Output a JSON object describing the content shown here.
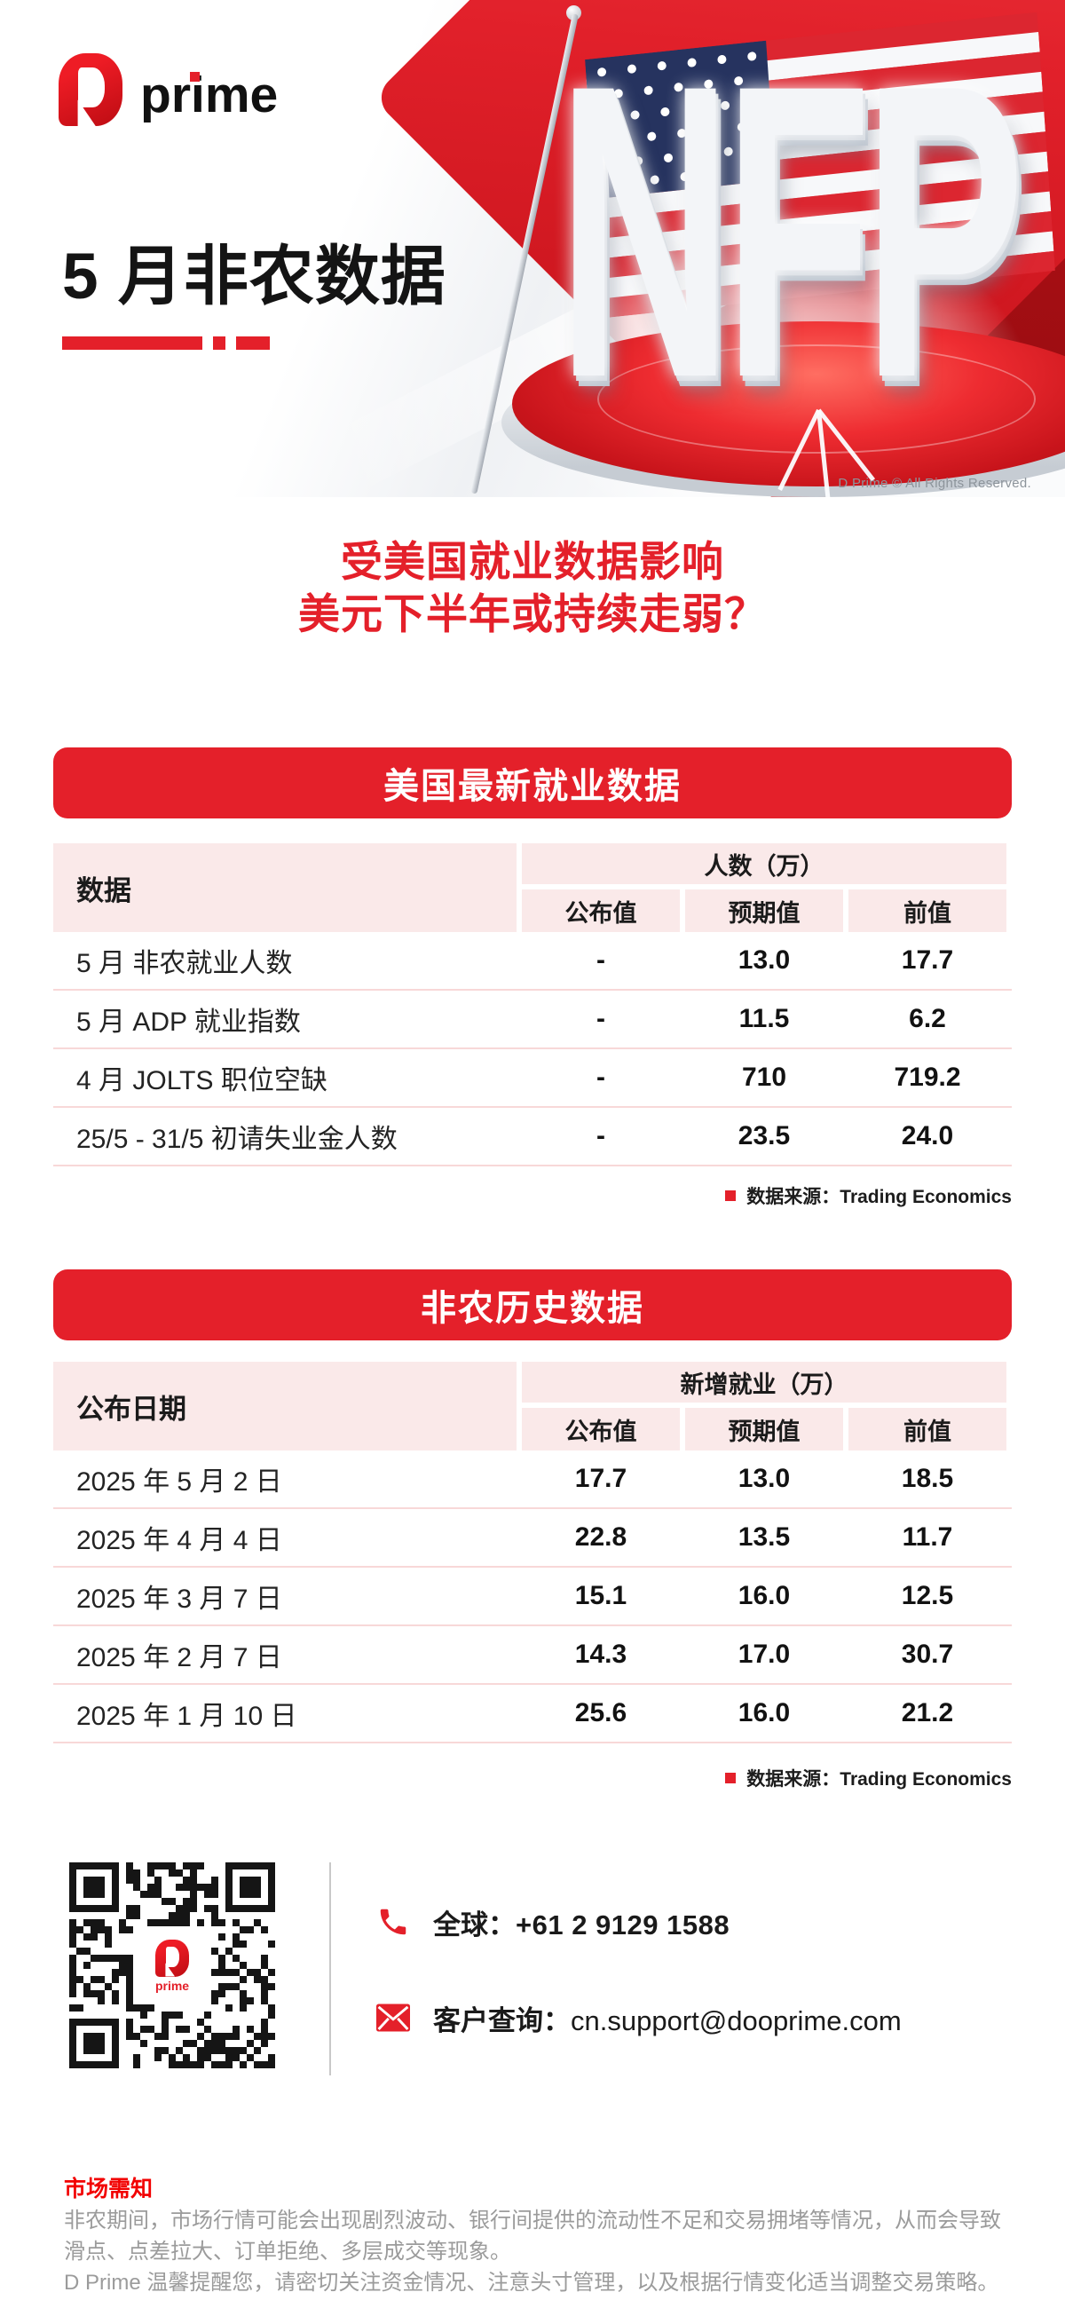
{
  "brand": {
    "logo_text": "prime",
    "copyright": "D Prime © All Rights Reserved."
  },
  "hero": {
    "title": "5 月非农数据",
    "nfp": "NFP"
  },
  "headline": {
    "line1": "受美国就业数据影响",
    "line2": "美元下半年或持续走弱？"
  },
  "tables": [
    {
      "banner": "美国最新就业数据",
      "row_header": "数据",
      "group_header": "人数（万）",
      "col_headers": [
        "公布值",
        "预期值",
        "前值"
      ],
      "rows": [
        {
          "label": "5 月 非农就业人数",
          "values": [
            "-",
            "13.0",
            "17.7"
          ]
        },
        {
          "label": "5 月 ADP 就业指数",
          "values": [
            "-",
            "11.5",
            "6.2"
          ]
        },
        {
          "label": "4 月 JOLTS 职位空缺",
          "values": [
            "-",
            "710",
            "719.2"
          ]
        },
        {
          "label": "25/5 - 31/5 初请失业金人数",
          "values": [
            "-",
            "23.5",
            "24.0"
          ]
        }
      ],
      "source": "数据来源：Trading Economics"
    },
    {
      "banner": "非农历史数据",
      "row_header": "公布日期",
      "group_header": "新增就业（万）",
      "col_headers": [
        "公布值",
        "预期值",
        "前值"
      ],
      "rows": [
        {
          "label": "2025 年 5 月 2 日",
          "values": [
            "17.7",
            "13.0",
            "18.5"
          ]
        },
        {
          "label": "2025 年 4 月 4 日",
          "values": [
            "22.8",
            "13.5",
            "11.7"
          ]
        },
        {
          "label": "2025 年 3 月 7 日",
          "values": [
            "15.1",
            "16.0",
            "12.5"
          ]
        },
        {
          "label": "2025 年 2 月 7 日",
          "values": [
            "14.3",
            "17.0",
            "30.7"
          ]
        },
        {
          "label": "2025 年 1 月 10 日",
          "values": [
            "25.6",
            "16.0",
            "21.2"
          ]
        }
      ],
      "source": "数据来源：Trading Economics"
    }
  ],
  "contact": {
    "phone_label": "全球：",
    "phone_value": "+61 2 9129 1588",
    "email_label": "客户查询：",
    "email_value": "cn.support@dooprime.com"
  },
  "notice": {
    "title": "市场需知",
    "lines": [
      "非农期间，市场行情可能会出现剧烈波动、银行间提供的流动性不足和交易拥堵等情况，从而会导致",
      "滑点、点差拉大、订单拒绝、多层成交等现象。",
      "D Prime 温馨提醒您，请密切关注资金情况、注意头寸管理，以及根据行情变化适当调整交易策略。"
    ]
  },
  "colors": {
    "primary_red": "#E4202A",
    "dark_red": "#BF1017",
    "header_pink": "#FAE9E9",
    "divider_pink": "#F8D8D8",
    "text_dark": "#1B1B1B",
    "muted_gray": "#9B9B9B"
  }
}
